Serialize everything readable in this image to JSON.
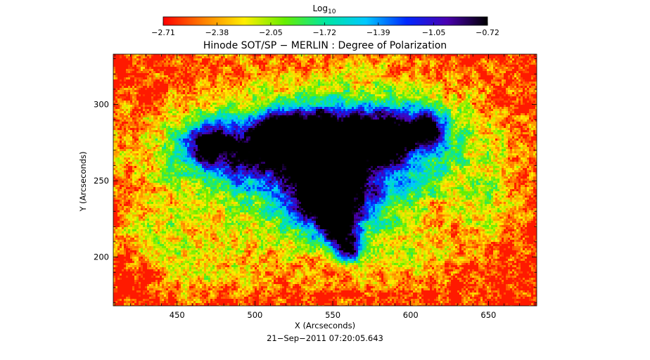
{
  "chart_data": {
    "type": "heatmap",
    "title": "Hinode SOT/SP − MERLIN : Degree of Polarization",
    "xlabel": "X (Arcseconds)",
    "ylabel": "Y (Arcseconds)",
    "timestamp": "21−Sep−2011 07:20:05.643",
    "xlim": [
      409,
      681
    ],
    "ylim": [
      168,
      333
    ],
    "x_ticks": [
      450,
      500,
      550,
      600,
      650
    ],
    "y_ticks": [
      200,
      250,
      300
    ],
    "colorbar": {
      "title_base": "Log",
      "title_sub": "10",
      "range": [
        -2.71,
        -0.72
      ],
      "tick_values": [
        -2.71,
        -2.38,
        -2.05,
        -1.72,
        -1.39,
        -1.05,
        -0.72
      ],
      "tick_labels": [
        "−2.71",
        "−2.38",
        "−2.05",
        "−1.72",
        "−1.39",
        "−1.05",
        "−0.72"
      ],
      "colors": [
        "#ff0000",
        "#ff8000",
        "#ffee00",
        "#66ee00",
        "#00e6a0",
        "#00c8ff",
        "#0028ff",
        "#4a00b0",
        "#000000"
      ]
    },
    "features": [
      {
        "x": 548,
        "y": 245,
        "sx": 17,
        "sy": 18,
        "level": 1.0
      },
      {
        "x": 554,
        "y": 220,
        "sx": 8,
        "sy": 7,
        "level": 0.7
      },
      {
        "x": 560,
        "y": 205,
        "sx": 7,
        "sy": 6,
        "level": 0.8
      },
      {
        "x": 548,
        "y": 252,
        "sx": 40,
        "sy": 35,
        "level": 0.5
      },
      {
        "x": 585,
        "y": 278,
        "sx": 9,
        "sy": 9,
        "level": 0.85
      },
      {
        "x": 610,
        "y": 284,
        "sx": 7,
        "sy": 7,
        "level": 0.85
      },
      {
        "x": 570,
        "y": 280,
        "sx": 8,
        "sy": 7,
        "level": 0.75
      },
      {
        "x": 596,
        "y": 280,
        "sx": 30,
        "sy": 18,
        "level": 0.45
      },
      {
        "x": 488,
        "y": 270,
        "sx": 26,
        "sy": 14,
        "level": 0.6
      },
      {
        "x": 470,
        "y": 275,
        "sx": 10,
        "sy": 8,
        "level": 0.6
      },
      {
        "x": 540,
        "y": 285,
        "sx": 16,
        "sy": 10,
        "level": 0.6
      },
      {
        "x": 515,
        "y": 282,
        "sx": 12,
        "sy": 10,
        "level": 0.55
      },
      {
        "x": 525,
        "y": 270,
        "sx": 70,
        "sy": 25,
        "level": 0.28
      },
      {
        "x": 548,
        "y": 265,
        "sx": 100,
        "sy": 55,
        "level": 0.18
      },
      {
        "x": 440,
        "y": 215,
        "sx": 18,
        "sy": 15,
        "level": 0.25
      },
      {
        "x": 470,
        "y": 190,
        "sx": 20,
        "sy": 12,
        "level": 0.22
      },
      {
        "x": 650,
        "y": 235,
        "sx": 14,
        "sy": 20,
        "level": 0.2
      },
      {
        "x": 600,
        "y": 200,
        "sx": 18,
        "sy": 10,
        "level": 0.18
      }
    ]
  }
}
